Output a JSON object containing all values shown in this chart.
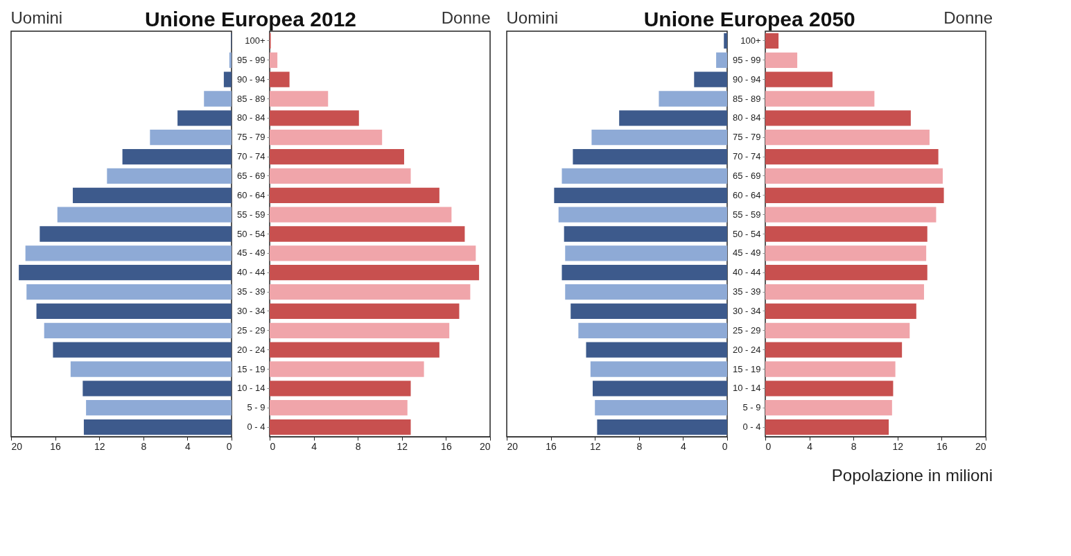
{
  "chart_data": [
    {
      "type": "bar",
      "orientation": "horizontal",
      "title": "Unione Europea 2012",
      "categories": [
        "100+",
        "95 - 99",
        "90 - 94",
        "85 - 89",
        "80 - 84",
        "75 - 79",
        "70 - 74",
        "65 - 69",
        "60 - 64",
        "55 - 59",
        "50 - 54",
        "45 - 49",
        "40 - 44",
        "35 - 39",
        "30 - 34",
        "25 - 29",
        "20 - 24",
        "15 - 19",
        "10 - 14",
        "5 - 9",
        "0 - 4"
      ],
      "xlim": [
        20,
        0
      ],
      "xticks": [
        20,
        16,
        12,
        8,
        4,
        0
      ],
      "tick_labels": "x",
      "series": [
        {
          "name": "Uomini",
          "colors": [
            "#3d5a8c",
            "#8eaad6",
            "#3d5a8c",
            "#8eaad6",
            "#3d5a8c",
            "#8eaad6",
            "#3d5a8c",
            "#8eaad6",
            "#3d5a8c",
            "#8eaad6",
            "#3d5a8c",
            "#8eaad6",
            "#3d5a8c",
            "#8eaad6",
            "#3d5a8c",
            "#8eaad6",
            "#3d5a8c",
            "#8eaad6",
            "#3d5a8c",
            "#8eaad6",
            "#3d5a8c"
          ],
          "values": [
            0.05,
            0.2,
            0.7,
            2.5,
            4.9,
            7.4,
            9.9,
            11.3,
            14.4,
            15.8,
            17.4,
            18.7,
            19.3,
            18.6,
            17.7,
            17.0,
            16.2,
            14.6,
            13.5,
            13.2,
            13.4
          ]
        }
      ]
    },
    {
      "type": "bar",
      "orientation": "horizontal",
      "categories": [
        "100+",
        "95 - 99",
        "90 - 94",
        "85 - 89",
        "80 - 84",
        "75 - 79",
        "70 - 74",
        "65 - 69",
        "60 - 64",
        "55 - 59",
        "50 - 54",
        "45 - 49",
        "40 - 44",
        "35 - 39",
        "30 - 34",
        "25 - 29",
        "20 - 24",
        "15 - 19",
        "10 - 14",
        "5 - 9",
        "0 - 4"
      ],
      "xlim": [
        0,
        20
      ],
      "xticks": [
        0,
        4,
        8,
        12,
        16,
        20
      ],
      "series": [
        {
          "name": "Donne",
          "colors": [
            "#c8504f",
            "#f0a5aa",
            "#c8504f",
            "#f0a5aa",
            "#c8504f",
            "#f0a5aa",
            "#c8504f",
            "#f0a5aa",
            "#c8504f",
            "#f0a5aa",
            "#c8504f",
            "#f0a5aa",
            "#c8504f",
            "#f0a5aa",
            "#c8504f",
            "#f0a5aa",
            "#c8504f",
            "#f0a5aa",
            "#c8504f",
            "#f0a5aa",
            "#c8504f"
          ],
          "values": [
            0.1,
            0.7,
            1.8,
            5.3,
            8.1,
            10.2,
            12.2,
            12.8,
            15.4,
            16.5,
            17.7,
            18.7,
            19.0,
            18.2,
            17.2,
            16.3,
            15.4,
            14.0,
            12.8,
            12.5,
            12.8
          ]
        }
      ]
    },
    {
      "type": "bar",
      "orientation": "horizontal",
      "title": "Unione Europea 2050",
      "categories": [
        "100+",
        "95 - 99",
        "90 - 94",
        "85 - 89",
        "80 - 84",
        "75 - 79",
        "70 - 74",
        "65 - 69",
        "60 - 64",
        "55 - 59",
        "50 - 54",
        "45 - 49",
        "40 - 44",
        "35 - 39",
        "30 - 34",
        "25 - 29",
        "20 - 24",
        "15 - 19",
        "10 - 14",
        "5 - 9",
        "0 - 4"
      ],
      "xlim": [
        20,
        0
      ],
      "xticks": [
        20,
        16,
        12,
        8,
        4,
        0
      ],
      "tick_labels": "x",
      "series": [
        {
          "name": "Uomini",
          "colors": [
            "#3d5a8c",
            "#8eaad6",
            "#3d5a8c",
            "#8eaad6",
            "#3d5a8c",
            "#8eaad6",
            "#3d5a8c",
            "#8eaad6",
            "#3d5a8c",
            "#8eaad6",
            "#3d5a8c",
            "#8eaad6",
            "#3d5a8c",
            "#8eaad6",
            "#3d5a8c",
            "#8eaad6",
            "#3d5a8c",
            "#8eaad6",
            "#3d5a8c",
            "#8eaad6",
            "#3d5a8c"
          ],
          "values": [
            0.3,
            1.0,
            3.0,
            6.2,
            9.8,
            12.3,
            14.0,
            15.0,
            15.7,
            15.3,
            14.8,
            14.7,
            15.0,
            14.7,
            14.2,
            13.5,
            12.8,
            12.4,
            12.2,
            12.0,
            11.8
          ]
        }
      ]
    },
    {
      "type": "bar",
      "orientation": "horizontal",
      "categories": [
        "100+",
        "95 - 99",
        "90 - 94",
        "85 - 89",
        "80 - 84",
        "75 - 79",
        "70 - 74",
        "65 - 69",
        "60 - 64",
        "55 - 59",
        "50 - 54",
        "45 - 49",
        "40 - 44",
        "35 - 39",
        "30 - 34",
        "25 - 29",
        "20 - 24",
        "15 - 19",
        "10 - 14",
        "5 - 9",
        "0 - 4"
      ],
      "xlim": [
        0,
        20
      ],
      "xticks": [
        0,
        4,
        8,
        12,
        16,
        20
      ],
      "annotations": [
        "Popolazione in milioni"
      ],
      "series": [
        {
          "name": "Donne",
          "colors": [
            "#c8504f",
            "#f0a5aa",
            "#c8504f",
            "#f0a5aa",
            "#c8504f",
            "#f0a5aa",
            "#c8504f",
            "#f0a5aa",
            "#c8504f",
            "#f0a5aa",
            "#c8504f",
            "#f0a5aa",
            "#c8504f",
            "#f0a5aa",
            "#c8504f",
            "#f0a5aa",
            "#c8504f",
            "#f0a5aa",
            "#c8504f",
            "#f0a5aa",
            "#c8504f"
          ],
          "values": [
            1.2,
            2.9,
            6.1,
            9.9,
            13.2,
            14.9,
            15.7,
            16.1,
            16.2,
            15.5,
            14.7,
            14.6,
            14.7,
            14.4,
            13.7,
            13.1,
            12.4,
            11.8,
            11.6,
            11.5,
            11.2
          ]
        }
      ]
    }
  ]
}
